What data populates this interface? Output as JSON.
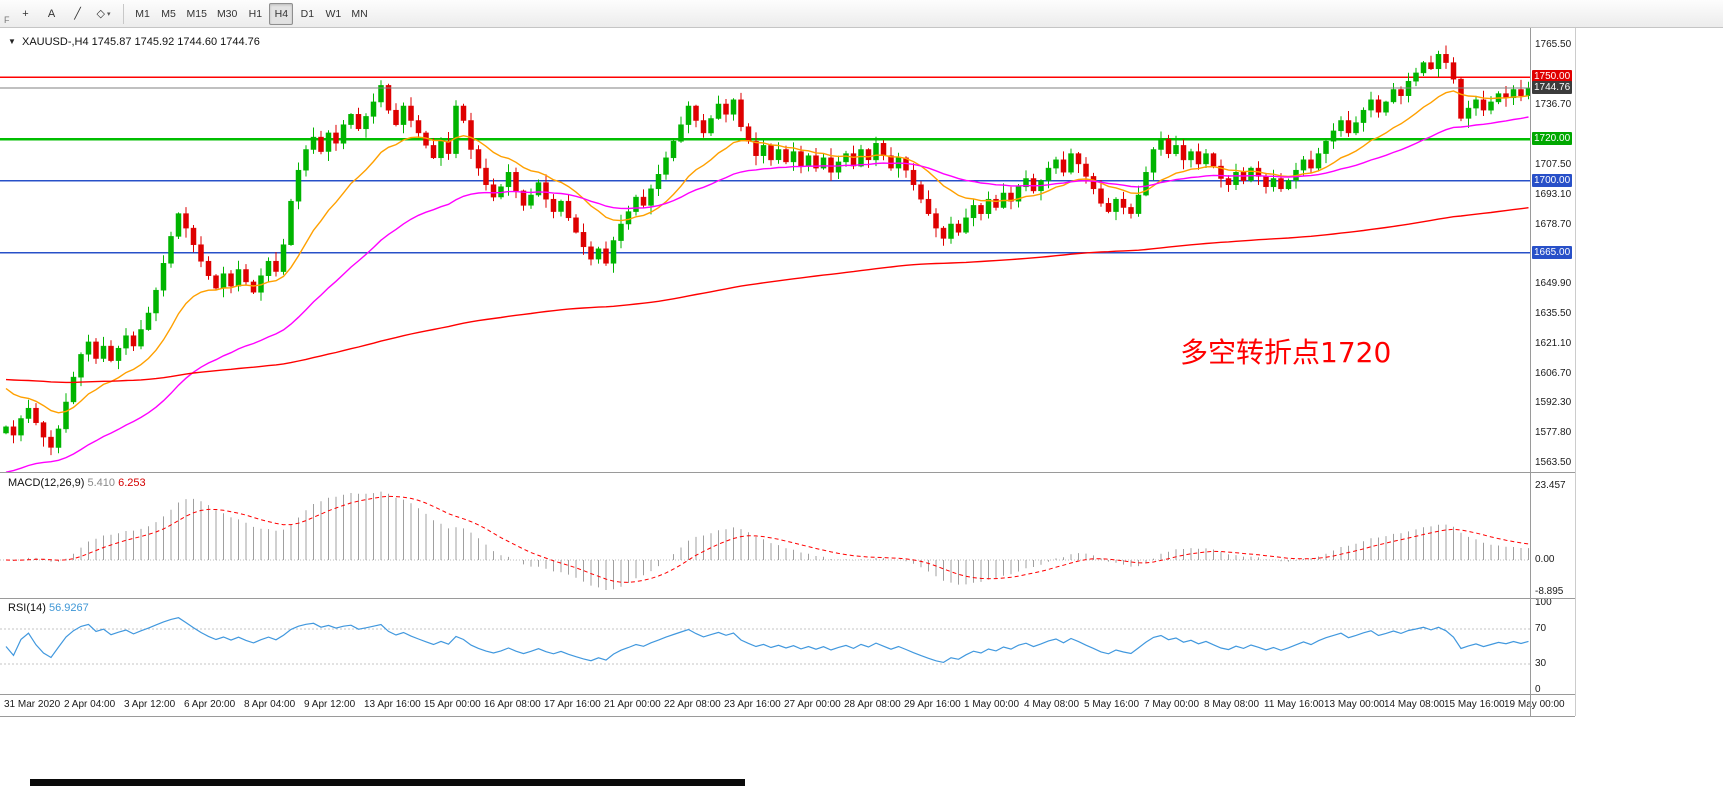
{
  "toolbar": {
    "overflow_label": "F",
    "icon_buttons": [
      {
        "name": "crosshair-icon",
        "glyph": "+",
        "dropdown": false
      },
      {
        "name": "text-label-icon",
        "glyph": "A",
        "dropdown": false
      },
      {
        "name": "trendline-icon",
        "glyph": "╱",
        "dropdown": false
      },
      {
        "name": "shapes-icon",
        "glyph": "◇",
        "dropdown": true
      }
    ],
    "timeframes": [
      {
        "label": "M1",
        "active": false
      },
      {
        "label": "M5",
        "active": false
      },
      {
        "label": "M15",
        "active": false
      },
      {
        "label": "M30",
        "active": false
      },
      {
        "label": "H1",
        "active": false
      },
      {
        "label": "H4",
        "active": true
      },
      {
        "label": "D1",
        "active": false
      },
      {
        "label": "W1",
        "active": false
      },
      {
        "label": "MN",
        "active": false
      }
    ]
  },
  "chart": {
    "symbol": "XAUUSD-,H4",
    "ohlc": "1745.87 1745.92 1744.60 1744.76",
    "annotation": {
      "text": "多空转折点1720",
      "color": "#FF0000"
    },
    "price_axis": {
      "gridline_labels": [
        "1765.50",
        "1736.70",
        "1707.50",
        "1693.10",
        "1678.70",
        "1649.90",
        "1635.50",
        "1621.10",
        "1606.70",
        "1592.30",
        "1577.80",
        "1563.50"
      ],
      "badges": [
        {
          "name": "resistance-level-badge",
          "text": "1750.00",
          "color": "#E00000"
        },
        {
          "name": "current-price-badge",
          "text": "1744.76",
          "color": "#3C3C3C"
        },
        {
          "name": "pivot-level-badge",
          "text": "1720.00",
          "color": "#00A800"
        },
        {
          "name": "support-level-badge",
          "text": "1700.00",
          "color": "#2850C8"
        },
        {
          "name": "support-level-badge-2",
          "text": "1665.00",
          "color": "#2850C8"
        }
      ]
    },
    "colors": {
      "candle_up": "#00B400",
      "candle_down": "#DE0000",
      "ma_fast": "#FFA000",
      "ma_mid": "#FF00FF",
      "ma_slow": "#FF0000",
      "current_line": "#808080",
      "macd_hist": "#A0A0A0",
      "macd_signal": "#FF0000",
      "rsi_line": "#4198DE",
      "level_line": "#C6C6C6"
    }
  },
  "chart_data": {
    "type": "candlestick",
    "symbol": "XAUUSD",
    "timeframe": "H4",
    "ylim": [
      1563.5,
      1765.5
    ],
    "current_price": 1744.76,
    "open_first": 1578,
    "candles_per_label": 8,
    "closes": [
      1581,
      1577,
      1585,
      1590,
      1583,
      1576,
      1571,
      1580,
      1593,
      1605,
      1616,
      1622,
      1614,
      1620,
      1613,
      1619,
      1625,
      1620,
      1628,
      1636,
      1647,
      1660,
      1673,
      1684,
      1677,
      1669,
      1661,
      1654,
      1648,
      1655,
      1649,
      1657,
      1651,
      1646,
      1654,
      1661,
      1656,
      1669,
      1690,
      1705,
      1715,
      1721,
      1714,
      1723,
      1718,
      1727,
      1732,
      1725,
      1731,
      1738,
      1746,
      1734,
      1727,
      1736,
      1729,
      1723,
      1717,
      1711,
      1719,
      1713,
      1736,
      1729,
      1715,
      1706,
      1698,
      1692,
      1697,
      1704,
      1695,
      1688,
      1693,
      1699,
      1691,
      1685,
      1690,
      1682,
      1675,
      1668,
      1662,
      1667,
      1660,
      1671,
      1679,
      1685,
      1692,
      1688,
      1696,
      1703,
      1711,
      1719,
      1727,
      1736,
      1729,
      1723,
      1730,
      1737,
      1732,
      1739,
      1726,
      1719,
      1712,
      1717,
      1710,
      1715,
      1709,
      1714,
      1707,
      1712,
      1706,
      1711,
      1704,
      1709,
      1713,
      1707,
      1715,
      1710,
      1718,
      1712,
      1706,
      1711,
      1705,
      1698,
      1691,
      1684,
      1677,
      1672,
      1679,
      1675,
      1682,
      1688,
      1684,
      1691,
      1687,
      1694,
      1690,
      1697,
      1701,
      1695,
      1700,
      1706,
      1710,
      1704,
      1713,
      1708,
      1702,
      1696,
      1689,
      1685,
      1691,
      1687,
      1684,
      1693,
      1704,
      1715,
      1720,
      1713,
      1717,
      1710,
      1714,
      1708,
      1713,
      1707,
      1701,
      1698,
      1704,
      1700,
      1706,
      1702,
      1697,
      1701,
      1696,
      1700,
      1705,
      1710,
      1706,
      1713,
      1719,
      1724,
      1729,
      1723,
      1728,
      1734,
      1739,
      1733,
      1738,
      1744,
      1741,
      1748,
      1752,
      1757,
      1754,
      1761,
      1757,
      1749,
      1730,
      1735,
      1739,
      1734,
      1738,
      1742,
      1740,
      1744,
      1741,
      1744.76
    ],
    "x_labels": [
      "31 Mar 2020",
      "2 Apr 04:00",
      "3 Apr 12:00",
      "6 Apr 20:00",
      "8 Apr 04:00",
      "9 Apr 12:00",
      "13 Apr 16:00",
      "15 Apr 00:00",
      "16 Apr 08:00",
      "17 Apr 16:00",
      "21 Apr 00:00",
      "22 Apr 08:00",
      "23 Apr 16:00",
      "27 Apr 00:00",
      "28 Apr 08:00",
      "29 Apr 16:00",
      "1 May 00:00",
      "4 May 08:00",
      "5 May 16:00",
      "7 May 00:00",
      "8 May 08:00",
      "11 May 16:00",
      "13 May 00:00",
      "14 May 08:00",
      "15 May 16:00",
      "19 May 00:00"
    ],
    "h_lines": [
      {
        "price": 1750.0,
        "color": "#FF0000",
        "width": 1.5
      },
      {
        "price": 1720.0,
        "color": "#00BE00",
        "width": 2.5
      },
      {
        "price": 1700.0,
        "color": "#2850C8",
        "width": 1.5
      },
      {
        "price": 1665.0,
        "color": "#2850C8",
        "width": 1.5
      }
    ],
    "moving_averages": [
      {
        "name": "fast-ma",
        "color": "#FFA000"
      },
      {
        "name": "mid-ma",
        "color": "#FF00FF"
      },
      {
        "name": "slow-ma",
        "color": "#FF0000"
      }
    ]
  },
  "macd": {
    "title": "MACD(12,26,9)",
    "value_main": "5.410",
    "value_signal": "6.253",
    "scale": [
      "23.457",
      "0.00",
      "-8.895"
    ]
  },
  "rsi": {
    "title": "RSI(14)",
    "value": "56.9267",
    "scale": [
      "100",
      "70",
      "30",
      "0"
    ]
  }
}
